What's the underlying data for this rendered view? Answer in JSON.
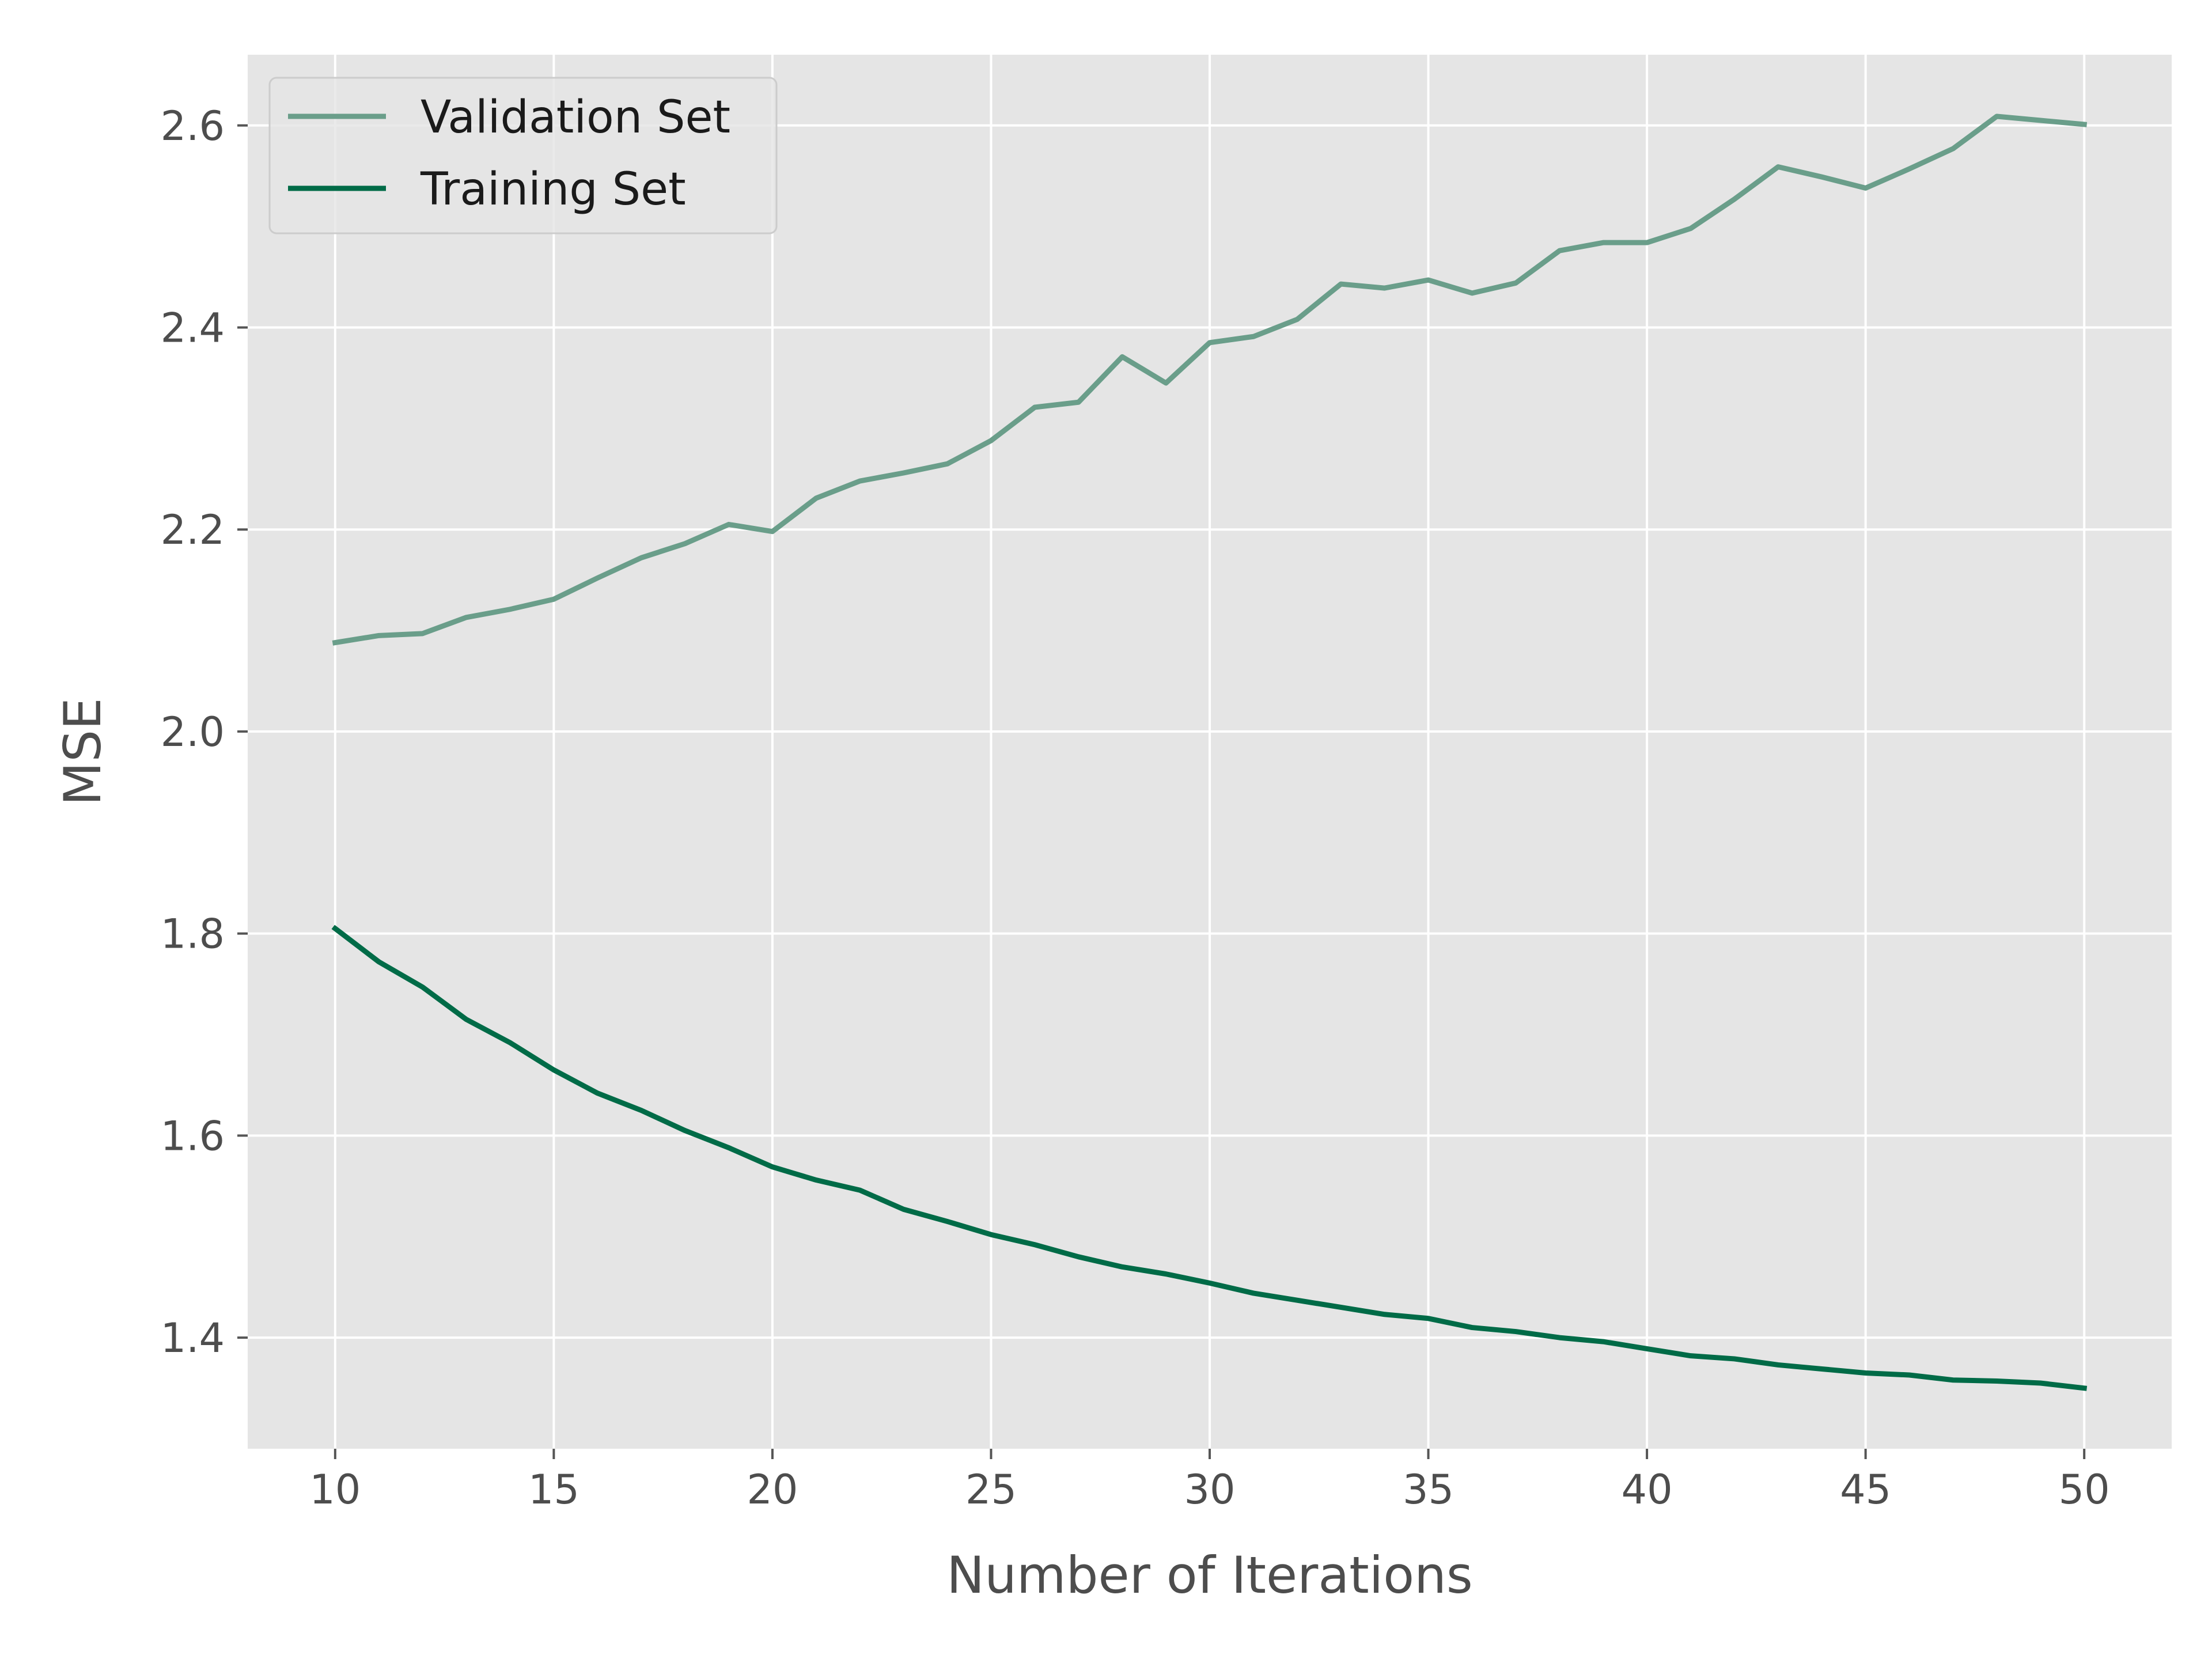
{
  "chart_data": {
    "type": "line",
    "title": "",
    "xlabel": "Number of Iterations",
    "ylabel": "MSE",
    "xlim": [
      8,
      52
    ],
    "ylim": [
      1.29,
      2.67
    ],
    "x_ticks": [
      10,
      15,
      20,
      25,
      30,
      35,
      40,
      45,
      50
    ],
    "x_tick_labels": [
      "10",
      "15",
      "20",
      "25",
      "30",
      "35",
      "40",
      "45",
      "50"
    ],
    "y_ticks": [
      1.4,
      1.6,
      1.8,
      2.0,
      2.2,
      2.4,
      2.6
    ],
    "y_tick_labels": [
      "1.4",
      "1.6",
      "1.8",
      "2.0",
      "2.2",
      "2.4",
      "2.6"
    ],
    "grid": true,
    "legend_position": "top-left",
    "background_color": "#e5e5e5",
    "x": [
      10,
      11,
      12,
      13,
      14,
      15,
      16,
      17,
      18,
      19,
      20,
      21,
      22,
      23,
      24,
      25,
      26,
      27,
      28,
      29,
      30,
      31,
      32,
      33,
      34,
      35,
      36,
      37,
      38,
      39,
      40,
      41,
      42,
      43,
      44,
      45,
      46,
      47,
      48,
      49,
      50
    ],
    "series": [
      {
        "name": "Validation Set",
        "color": "#6a9e8a",
        "values": [
          2.088,
          2.095,
          2.097,
          2.113,
          2.121,
          2.131,
          2.152,
          2.172,
          2.186,
          2.205,
          2.198,
          2.231,
          2.248,
          2.256,
          2.265,
          2.288,
          2.321,
          2.326,
          2.371,
          2.345,
          2.385,
          2.391,
          2.408,
          2.443,
          2.439,
          2.447,
          2.434,
          2.444,
          2.476,
          2.484,
          2.484,
          2.498,
          2.527,
          2.559,
          2.549,
          2.538,
          2.557,
          2.577,
          2.609,
          2.605,
          2.601
        ]
      },
      {
        "name": "Training Set",
        "color": "#006b47",
        "values": [
          1.805,
          1.772,
          1.747,
          1.715,
          1.692,
          1.665,
          1.642,
          1.625,
          1.605,
          1.588,
          1.569,
          1.556,
          1.546,
          1.527,
          1.515,
          1.502,
          1.492,
          1.48,
          1.47,
          1.463,
          1.454,
          1.444,
          1.437,
          1.43,
          1.423,
          1.419,
          1.41,
          1.406,
          1.4,
          1.396,
          1.389,
          1.382,
          1.379,
          1.373,
          1.369,
          1.365,
          1.363,
          1.358,
          1.357,
          1.355,
          1.35
        ]
      }
    ]
  }
}
